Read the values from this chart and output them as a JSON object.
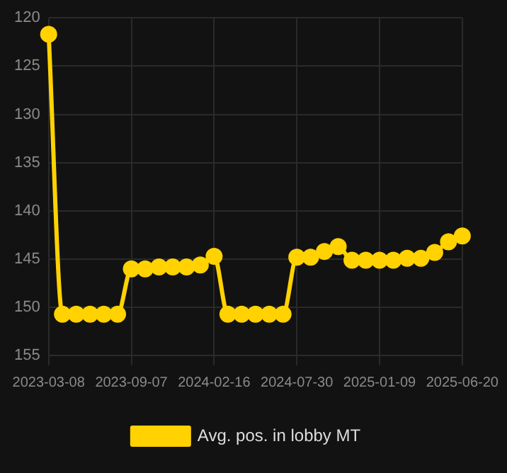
{
  "chart_data": {
    "type": "line",
    "categories": [
      "2023-03-08",
      null,
      null,
      null,
      null,
      null,
      "2023-09-07",
      null,
      null,
      null,
      null,
      null,
      "2024-02-16",
      null,
      null,
      null,
      null,
      null,
      "2024-07-30",
      null,
      null,
      null,
      null,
      null,
      "2025-01-09",
      null,
      null,
      null,
      null,
      null,
      "2025-06-20"
    ],
    "series": [
      {
        "name": "Avg. pos. in lobby MT",
        "color": "#ffd200",
        "values": [
          121.7,
          150.7,
          150.7,
          150.7,
          150.7,
          150.7,
          146.0,
          146.0,
          145.8,
          145.8,
          145.8,
          145.6,
          144.7,
          150.7,
          150.7,
          150.7,
          150.7,
          150.7,
          144.8,
          144.8,
          144.2,
          143.7,
          145.1,
          145.1,
          145.1,
          145.1,
          144.9,
          144.9,
          144.3,
          143.2,
          142.6
        ]
      }
    ],
    "ylim": [
      156,
      120
    ],
    "yticks": [
      120,
      125,
      130,
      135,
      140,
      145,
      150,
      155
    ],
    "grid": true,
    "legend": "bottom",
    "marker": "circle",
    "line_style": "solid"
  }
}
